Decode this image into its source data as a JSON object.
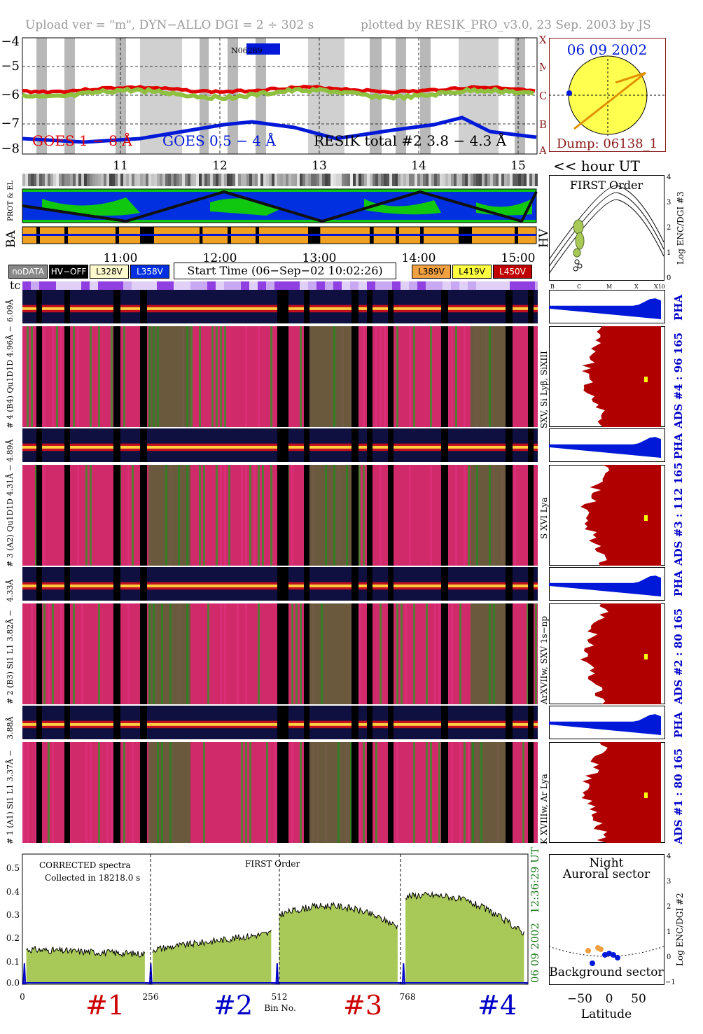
{
  "header": {
    "left": "Upload ver = \"m\", DYN−ALLO DGI =   2 ÷ 302 s",
    "right": "plotted by RESIK_PRO_v3.0, 23 Sep. 2003 by JS"
  },
  "goes": {
    "yticks": [
      "−4",
      "−5",
      "−6",
      "−7",
      "−8"
    ],
    "class_letters": [
      "X",
      "M",
      "C",
      "B",
      "A"
    ],
    "label_goes1": "GOES 1 − 8 Å",
    "label_goes05": "GOES 0.5 − 4 Å",
    "label_resik": "RESIK total #2  3.8 − 4.3 Å",
    "marker": "N06289",
    "hour_ticks": [
      "11",
      "12",
      "13",
      "14",
      "15"
    ],
    "hour_label": "<< hour UT"
  },
  "sun_panel": {
    "date": "06 09 2002",
    "dump": "Dump: 06138_1"
  },
  "status_rows": {
    "prot_el": "PROT & EL",
    "ba": "BA",
    "hv": "HV"
  },
  "first_order": {
    "title": "FIRST Order",
    "ylabel": "Log ENC/DGI #3",
    "yticks": [
      "4",
      "3",
      "2",
      "1",
      "0"
    ],
    "xticks": [
      "B",
      "C",
      "M",
      "X",
      "X10"
    ]
  },
  "time_axis": {
    "ticks": [
      "11:00",
      "12:00",
      "13:00",
      "14:00",
      "15:00"
    ],
    "start_time": "Start Time (06−Sep−02 10:02:26)",
    "tc": "tc"
  },
  "legend": {
    "nodata": "noDATA",
    "hvoff": "HV−OFF",
    "v1": "L328V",
    "v2": "L358V",
    "v3": "L389V",
    "v4": "L419V",
    "v5": "L450V"
  },
  "channels": [
    {
      "pha_label": "6.09Å",
      "main_label": "# 4 (B4) Qu1D1D 4.96Å −",
      "right_ids": "SXV, Si Lyβ, SiXIII",
      "ads": "ADS #4 :   96 165",
      "pha": "PHA"
    },
    {
      "pha_label": "4.89Å",
      "main_label": "# 3 (A2) Qu1D1D 4.31Å −",
      "right_ids": "S XVI Lya",
      "ads": "ADS #3 :   112 165",
      "pha": "PHA"
    },
    {
      "pha_label": "4.33Å",
      "main_label": "# 2 (B3) Si1 L1 3.82Å −",
      "right_ids": "ArXVIIw, SXV 1s−np",
      "ads": "ADS #2 :   80 165",
      "pha": "PHA"
    },
    {
      "pha_label": "3.88Å",
      "main_label": "# 1 (A1) Si1 L1 3.37Å −",
      "right_ids": "K XVIIIw, Ar Lya",
      "ads": "ADS #1 :   80 165",
      "pha": "PHA"
    }
  ],
  "spectrum": {
    "title1": "CORRECTED spectra",
    "title2": "Collected in 18218.0 s",
    "order": "FIRST Order",
    "timestamp_time": "12:36:29 UT",
    "timestamp_date": "06 09 2002",
    "yticks": [
      "0.5",
      "0.4",
      "0.3",
      "0.2",
      "0.1",
      "0.0"
    ],
    "xticks": [
      "0",
      "256",
      "512",
      "768"
    ],
    "xlabel": "Bin No.",
    "sections": [
      "#1",
      "#2",
      "#3",
      "#4"
    ],
    "colors": {
      "red": "#cc0000",
      "blue": "#0000c8",
      "fill": "#a8c858"
    }
  },
  "latitude_panel": {
    "night": "Night",
    "auroral": "Auroral sector",
    "background": "Background sector",
    "ylabel": "Log ENC/DGI #2",
    "yticks": [
      "4",
      "3",
      "2",
      "1",
      "0",
      "−1"
    ],
    "xticks": [
      "−50",
      "0",
      "50"
    ],
    "xlabel": "Latitude"
  },
  "chart_data": {
    "type": "area",
    "title": "CORRECTED spectra",
    "xlabel": "Bin No.",
    "ylabel": "",
    "xlim": [
      0,
      1024
    ],
    "ylim": [
      0,
      0.56
    ],
    "series": [
      {
        "name": "#1",
        "x": [
          0,
          256
        ],
        "values": [
          0.15,
          0.13
        ]
      },
      {
        "name": "#2",
        "x": [
          256,
          512
        ],
        "values": [
          0.15,
          0.22
        ]
      },
      {
        "name": "#3",
        "x": [
          512,
          768
        ],
        "values": [
          0.3,
          0.25
        ]
      },
      {
        "name": "#4",
        "x": [
          768,
          1024
        ],
        "values": [
          0.38,
          0.22
        ]
      }
    ]
  }
}
